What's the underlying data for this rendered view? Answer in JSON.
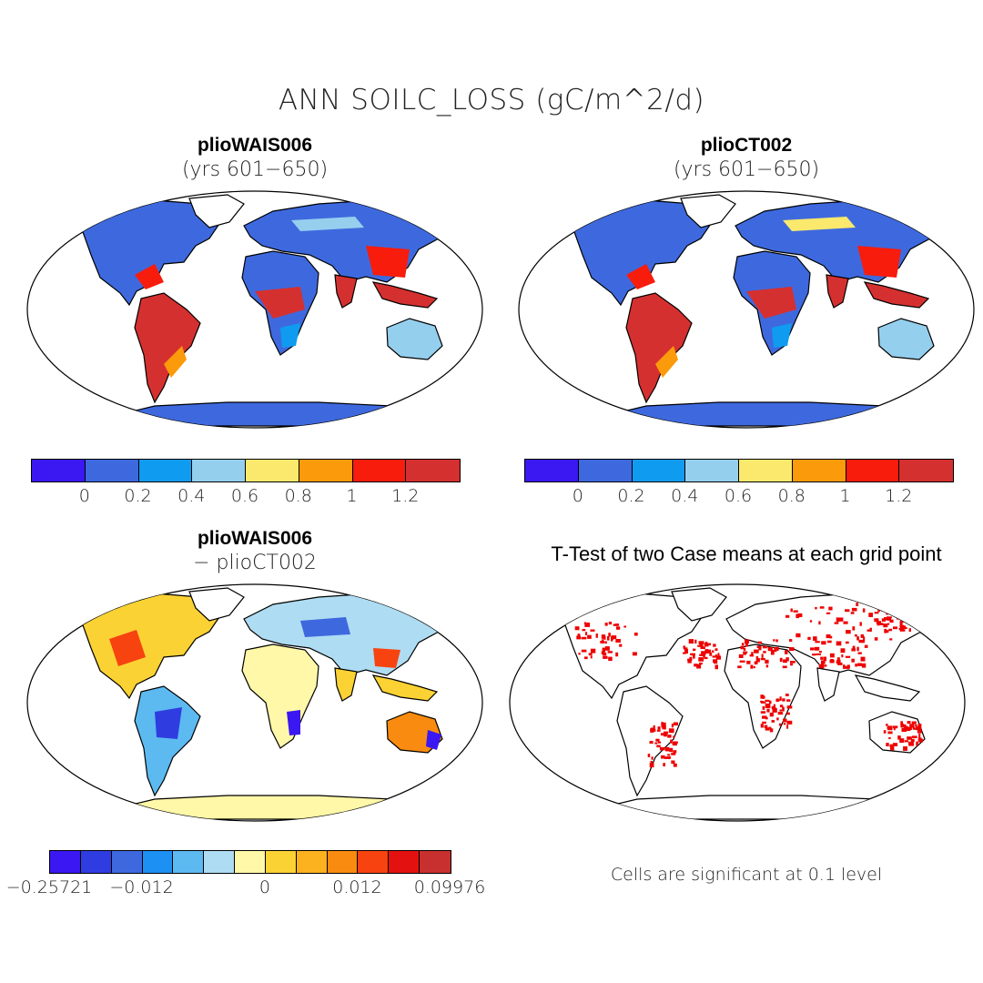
{
  "title": "ANN SOILC_LOSS (gC/m^2/d)",
  "panels": {
    "top_left": {
      "title": "plioWAIS006",
      "subtitle": "(yrs 601−650)"
    },
    "top_right": {
      "title": "plioCT002",
      "subtitle": "(yrs 601−650)"
    },
    "bottom_left": {
      "title": "plioWAIS006",
      "subtitle": "− plioCT002"
    },
    "bottom_right": {
      "title": "T-Test of two Case means at each grid point",
      "note": "Cells are significant at 0.1 level"
    }
  },
  "colorbar_abs": {
    "colors": [
      "#3b17f2",
      "#3e69de",
      "#0f9cf0",
      "#95cfee",
      "#fbe96d",
      "#fb9a0a",
      "#f81c0c",
      "#d53030"
    ],
    "labels": [
      "0",
      "0.2",
      "0.4",
      "0.6",
      "0.8",
      "1",
      "1.2"
    ]
  },
  "colorbar_diff": {
    "colors": [
      "#3b17f2",
      "#2f3de0",
      "#3e69de",
      "#1c90f3",
      "#5cbaf1",
      "#aedcf2",
      "#fef8a8",
      "#fbd234",
      "#fbb21e",
      "#f98b10",
      "#f7430f",
      "#e3110f",
      "#c83030"
    ],
    "labels": [
      "−0.25721",
      "−0.012",
      "0",
      "0.012",
      "0.09976"
    ]
  },
  "map_colors": {
    "ocean": "#ffffff",
    "outline": "#000000",
    "significance": "#ee0000"
  }
}
